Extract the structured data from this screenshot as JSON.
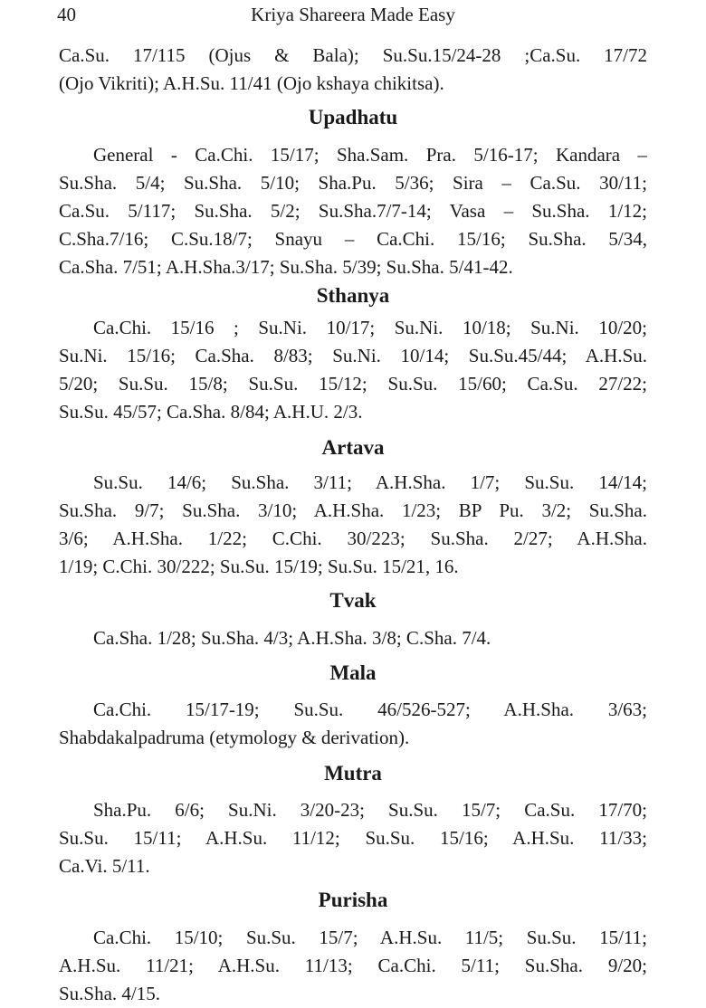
{
  "header": {
    "page_number": "40",
    "running_title": "Kriya Shareera Made Easy"
  },
  "intro": {
    "lines": [
      "Ca.Su. 17/115 (Ojus & Bala);  Su.Su.15/24-28 ;Ca.Su. 17/72",
      "(Ojo Vikriti);   A.H.Su. 11/41 (Ojo kshaya chikitsa)."
    ]
  },
  "sections": [
    {
      "heading": "Upadhatu",
      "lines": [
        "General - Ca.Chi. 15/17;  Sha.Sam. Pra. 5/16-17; Kandara –",
        "Su.Sha. 5/4; Su.Sha. 5/10; Sha.Pu. 5/36; Sira – Ca.Su. 30/11;",
        "Ca.Su. 5/117; Su.Sha. 5/2; Su.Sha.7/7-14; Vasa – Su.Sha. 1/12;",
        "C.Sha.7/16; C.Su.18/7; Snayu – Ca.Chi. 15/16; Su.Sha. 5/34,",
        "Ca.Sha. 7/51; A.H.Sha.3/17; Su.Sha. 5/39; Su.Sha. 5/41-42."
      ]
    },
    {
      "heading": "Sthanya",
      "lines": [
        "Ca.Chi. 15/16 ; Su.Ni. 10/17; Su.Ni. 10/18; Su.Ni. 10/20;",
        "Su.Ni. 15/16; Ca.Sha. 8/83; Su.Ni. 10/14; Su.Su.45/44; A.H.Su.",
        "5/20; Su.Su. 15/8; Su.Su. 15/12; Su.Su. 15/60; Ca.Su. 27/22;",
        "Su.Su. 45/57; Ca.Sha. 8/84; A.H.U. 2/3."
      ]
    },
    {
      "heading": "Artava",
      "lines": [
        "Su.Su. 14/6; Su.Sha. 3/11; A.H.Sha. 1/7; Su.Su. 14/14;",
        "Su.Sha. 9/7; Su.Sha. 3/10; A.H.Sha. 1/23;  BP Pu. 3/2; Su.Sha.",
        "3/6;    A.H.Sha. 1/22; C.Chi. 30/223; Su.Sha. 2/27; A.H.Sha.",
        "1/19; C.Chi. 30/222; Su.Su. 15/19; Su.Su. 15/21, 16."
      ]
    },
    {
      "heading": "Tvak",
      "lines": [
        "Ca.Sha. 1/28; Su.Sha. 4/3; A.H.Sha. 3/8; C.Sha. 7/4."
      ]
    },
    {
      "heading": "Mala",
      "lines": [
        "Ca.Chi. 15/17-19; Su.Su. 46/526-527; A.H.Sha. 3/63;",
        "Shabdakalpadruma (etymology & derivation)."
      ]
    },
    {
      "heading": "Mutra",
      "lines": [
        "Sha.Pu. 6/6; Su.Ni. 3/20-23; Su.Su. 15/7; Ca.Su. 17/70;",
        "Su.Su. 15/11; A.H.Su. 11/12; Su.Su. 15/16; A.H.Su. 11/33;",
        "Ca.Vi. 5/11."
      ]
    },
    {
      "heading": "Purisha",
      "lines": [
        "Ca.Chi. 15/10; Su.Su. 15/7; A.H.Su. 11/5; Su.Su. 15/11;",
        "A.H.Su. 11/21; A.H.Su. 11/13; Ca.Chi. 5/11; Su.Sha. 9/20;",
        "Su.Sha. 4/15."
      ]
    }
  ]
}
